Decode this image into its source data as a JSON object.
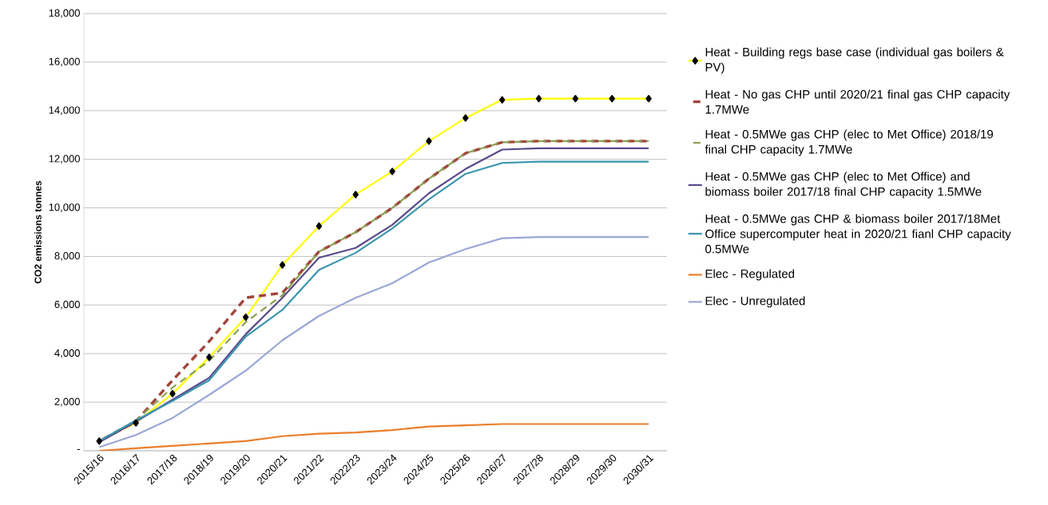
{
  "chart_data": {
    "type": "line",
    "ylabel": "CO2 emissions tonnes",
    "categories": [
      "2015/16",
      "2016/17",
      "2017/18",
      "2018/19",
      "2019/20",
      "2020/21",
      "2021/22",
      "2022/23",
      "2023/24",
      "2024/25",
      "2025/26",
      "2026/27",
      "2027/28",
      "2028/29",
      "2029/30",
      "2030/31"
    ],
    "ylim": [
      0,
      18000
    ],
    "yticks": [
      {
        "value": 0,
        "label": "-"
      },
      {
        "value": 2000,
        "label": "2,000"
      },
      {
        "value": 4000,
        "label": "4,000"
      },
      {
        "value": 6000,
        "label": "6,000"
      },
      {
        "value": 8000,
        "label": "8,000"
      },
      {
        "value": 10000,
        "label": "10,000"
      },
      {
        "value": 12000,
        "label": "12,000"
      },
      {
        "value": 14000,
        "label": "14,000"
      },
      {
        "value": 16000,
        "label": "16,000"
      },
      {
        "value": 18000,
        "label": "18,000"
      }
    ],
    "grid": "y",
    "legend": "right",
    "series": [
      {
        "name": "Heat - Building regs base case (individual gas boilers & PV)",
        "color": "#ffff00",
        "marker": "diamond",
        "line_style": "solid",
        "values": [
          400,
          1150,
          2350,
          3850,
          5500,
          7650,
          9250,
          10550,
          11500,
          12750,
          13700,
          14450,
          14500,
          14500,
          14500,
          14500
        ]
      },
      {
        "name": "Heat - No gas CHP until 2020/21 final gas CHP capacity 1.7MWe",
        "color": "#a0453d",
        "marker": "none",
        "line_style": "dashed",
        "values": [
          400,
          1200,
          2900,
          4500,
          6300,
          6500,
          8200,
          9000,
          10000,
          11200,
          12250,
          12700,
          12750,
          12750,
          12750,
          12750
        ]
      },
      {
        "name": "Heat - 0.5MWe gas CHP (elec to Met Office) 2018/19 final CHP capacity 1.7MWe",
        "color": "#8aa050",
        "marker": "none",
        "line_style": "dashed",
        "values": [
          400,
          1250,
          2600,
          3700,
          5300,
          6400,
          8200,
          9000,
          10000,
          11200,
          12250,
          12700,
          12750,
          12750,
          12750,
          12750
        ]
      },
      {
        "name": "Heat - 0.5MWe gas CHP (elec to Met Office) and biomass boiler 2017/18 final CHP capacity 1.5MWe",
        "color": "#5b4a8b",
        "marker": "none",
        "line_style": "solid",
        "values": [
          350,
          1200,
          2100,
          3000,
          4800,
          6300,
          7950,
          8350,
          9300,
          10600,
          11600,
          12400,
          12450,
          12450,
          12450,
          12450
        ]
      },
      {
        "name": "Heat - 0.5MWe gas CHP & biomass boiler 2017/18Met Office supercomputer heat in 2020/21 fianl CHP capacity 0.5MWe",
        "color": "#3a95ae",
        "marker": "none",
        "line_style": "solid",
        "values": [
          400,
          1250,
          2050,
          2900,
          4700,
          5800,
          7450,
          8150,
          9150,
          10350,
          11400,
          11850,
          11900,
          11900,
          11900,
          11900
        ]
      },
      {
        "name": "Elec - Regulated",
        "color": "#e97e2b",
        "marker": "none",
        "line_style": "solid",
        "values": [
          0,
          100,
          200,
          300,
          400,
          600,
          700,
          750,
          850,
          1000,
          1050,
          1100,
          1100,
          1100,
          1100,
          1100
        ]
      },
      {
        "name": "Elec - Unregulated",
        "color": "#9aa7d6",
        "marker": "none",
        "line_style": "solid",
        "values": [
          150,
          650,
          1350,
          2300,
          3300,
          4550,
          5550,
          6300,
          6900,
          7750,
          8300,
          8750,
          8800,
          8800,
          8800,
          8800
        ]
      }
    ]
  }
}
